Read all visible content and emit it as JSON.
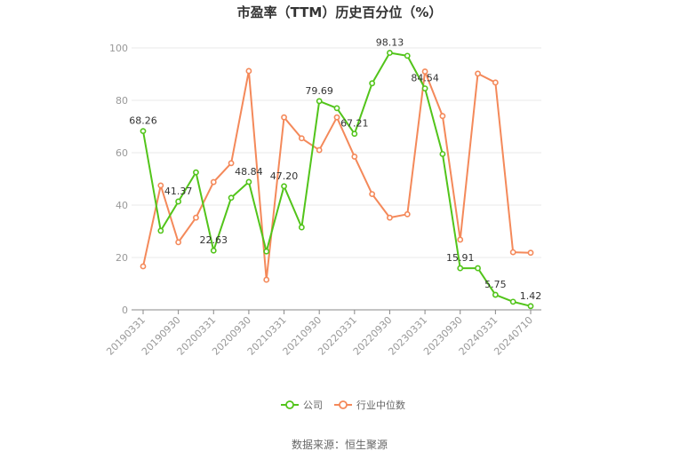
{
  "chart_data": {
    "type": "line",
    "title": "市盈率（TTM）历史百分位（%）",
    "xlabel": "",
    "ylabel": "",
    "ylim": [
      0,
      100
    ],
    "yticks": [
      0,
      20,
      40,
      60,
      80,
      100
    ],
    "grid": true,
    "legend": "bottom",
    "x_tick_labels": [
      "20190331",
      "20190930",
      "20200331",
      "20200930",
      "20210331",
      "20210930",
      "20220331",
      "20220930",
      "20230331",
      "20230930",
      "20240331",
      "20240710"
    ],
    "x": [
      "20190331",
      "20190630",
      "20190930",
      "20191231",
      "20200331",
      "20200630",
      "20200930",
      "20201231",
      "20210331",
      "20210630",
      "20210930",
      "20211231",
      "20220331",
      "20220630",
      "20220930",
      "20221231",
      "20230331",
      "20230630",
      "20230930",
      "20231231",
      "20240331",
      "20240630",
      "20240710"
    ],
    "series": [
      {
        "name": "公司",
        "color": "#52c41a",
        "values": [
          68.26,
          30.2,
          41.37,
          52.5,
          22.63,
          42.8,
          48.84,
          22.3,
          47.2,
          31.5,
          79.69,
          77.0,
          67.21,
          86.5,
          98.13,
          97.0,
          84.54,
          59.5,
          15.91,
          15.91,
          5.75,
          3.1,
          1.42
        ]
      },
      {
        "name": "行业中位数",
        "color": "#f4895a",
        "values": [
          16.6,
          47.5,
          25.8,
          35.2,
          48.8,
          56.0,
          91.2,
          11.5,
          73.5,
          65.5,
          61.0,
          73.5,
          58.5,
          44.2,
          35.2,
          36.5,
          91.0,
          74.0,
          26.8,
          90.2,
          86.8,
          22.0,
          21.8
        ]
      }
    ],
    "data_labels": [
      {
        "series": 0,
        "index": 0,
        "text": "68.26"
      },
      {
        "series": 0,
        "index": 2,
        "text": "41.37"
      },
      {
        "series": 0,
        "index": 4,
        "text": "22.63"
      },
      {
        "series": 0,
        "index": 6,
        "text": "48.84"
      },
      {
        "series": 0,
        "index": 8,
        "text": "47.20"
      },
      {
        "series": 0,
        "index": 10,
        "text": "79.69"
      },
      {
        "series": 0,
        "index": 12,
        "text": "67.21"
      },
      {
        "series": 0,
        "index": 14,
        "text": "98.13"
      },
      {
        "series": 0,
        "index": 16,
        "text": "84.54"
      },
      {
        "series": 0,
        "index": 18,
        "text": "15.91"
      },
      {
        "series": 0,
        "index": 20,
        "text": "5.75"
      },
      {
        "series": 0,
        "index": 22,
        "text": "1.42"
      }
    ]
  },
  "source": "数据来源：恒生聚源"
}
